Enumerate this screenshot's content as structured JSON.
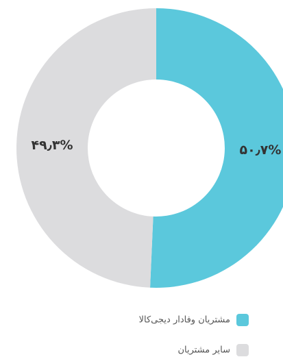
{
  "chart_data": {
    "type": "donut",
    "categories": [
      "مشتریان وفادار دیجی‌کالا",
      "سایر مشتریان"
    ],
    "values": [
      50.7,
      49.3
    ],
    "value_labels": [
      "۵۰٫۷%",
      "۴۹٫۳%"
    ],
    "colors": [
      "#5bc8dc",
      "#dcdcde"
    ]
  }
}
